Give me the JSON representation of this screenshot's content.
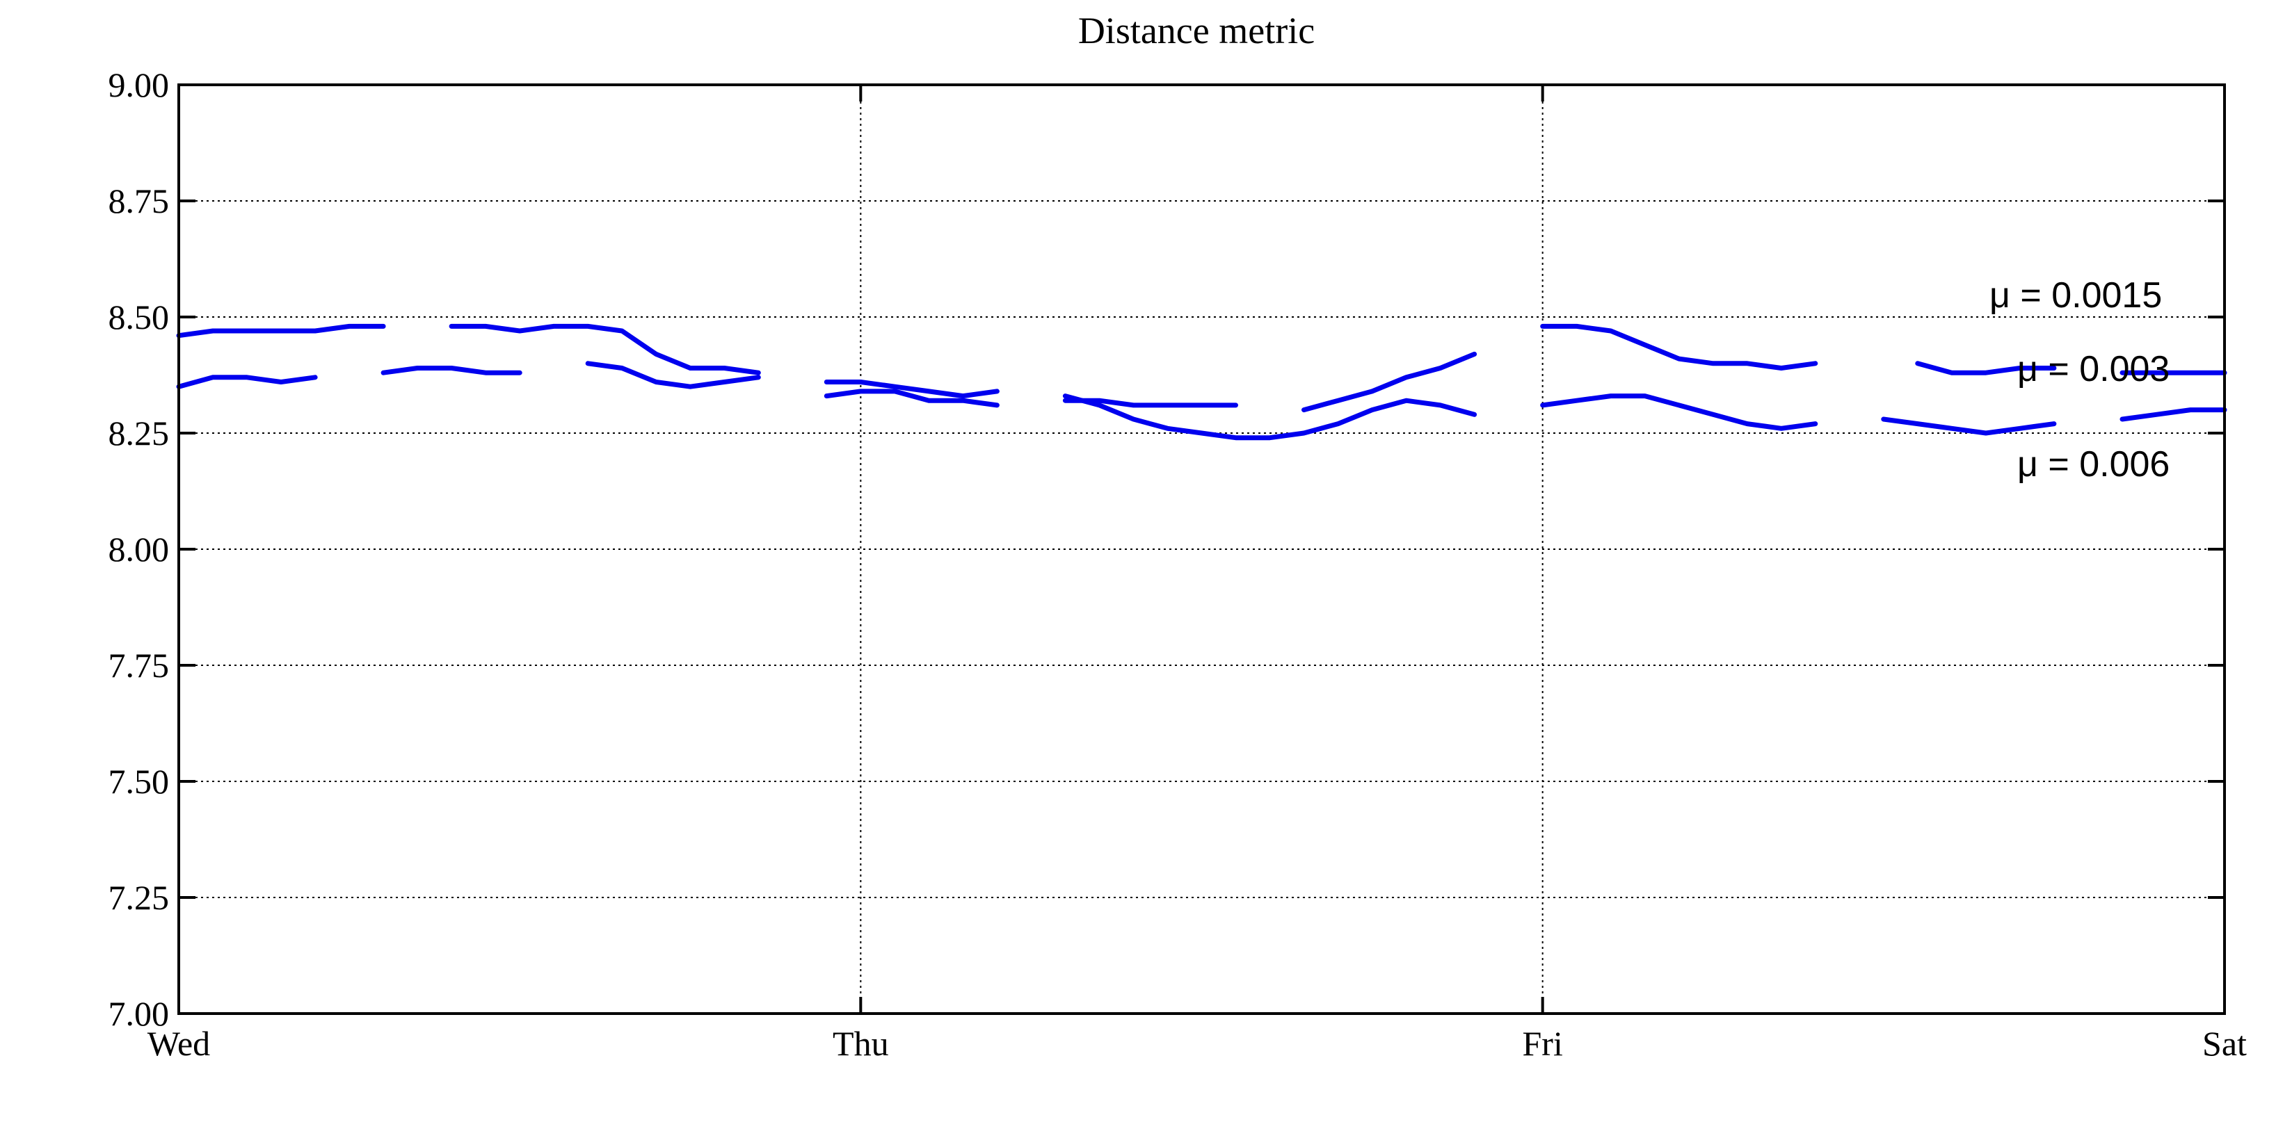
{
  "chart_data": {
    "type": "line",
    "title": "Distance metric",
    "xlabel": "",
    "ylabel": "",
    "x_ticks": [
      "Wed",
      "Thu",
      "Fri",
      "Sat"
    ],
    "xlim": [
      0,
      3
    ],
    "ylim": [
      7.0,
      9.0
    ],
    "y_ticks": [
      "7.00",
      "7.25",
      "7.50",
      "7.75",
      "8.00",
      "8.25",
      "8.50",
      "8.75",
      "9.00"
    ],
    "grid": true,
    "line_color": "#0000ee",
    "series": [
      {
        "name": "μ = 0.0015",
        "gaps": [
          [
            0.3,
            0.39
          ],
          [
            0.65,
            0.7
          ],
          [
            0.88,
            0.92
          ],
          [
            1.23,
            1.3
          ],
          [
            1.58,
            1.63
          ],
          [
            1.92,
            2.0
          ],
          [
            2.42,
            2.51
          ],
          [
            2.77,
            2.84
          ],
          [
            2.97,
            3.0
          ]
        ],
        "x": [
          0.0,
          0.05,
          0.1,
          0.15,
          0.2,
          0.25,
          0.3,
          0.35,
          0.4,
          0.45,
          0.5,
          0.55,
          0.6,
          0.65,
          0.7,
          0.75,
          0.8,
          0.85,
          0.9,
          0.95,
          1.0,
          1.05,
          1.1,
          1.15,
          1.2,
          1.25,
          1.3,
          1.35,
          1.4,
          1.45,
          1.5,
          1.55,
          1.6,
          1.65,
          1.7,
          1.75,
          1.8,
          1.85,
          1.9,
          1.95,
          2.0,
          2.05,
          2.1,
          2.15,
          2.2,
          2.25,
          2.3,
          2.35,
          2.4,
          2.45,
          2.5,
          2.55,
          2.6,
          2.65,
          2.7,
          2.75,
          2.8,
          2.85,
          2.9,
          2.95,
          3.0
        ],
        "values": [
          8.46,
          8.47,
          8.47,
          8.47,
          8.47,
          8.48,
          8.48,
          8.48,
          8.48,
          8.48,
          8.47,
          8.48,
          8.48,
          8.47,
          8.42,
          8.39,
          8.39,
          8.38,
          8.35,
          8.33,
          8.34,
          8.34,
          8.32,
          8.32,
          8.31,
          8.32,
          8.32,
          8.32,
          8.31,
          8.31,
          8.31,
          8.31,
          8.31,
          8.3,
          8.32,
          8.34,
          8.37,
          8.39,
          8.42,
          8.45,
          8.48,
          8.48,
          8.47,
          8.44,
          8.41,
          8.4,
          8.4,
          8.39,
          8.4,
          8.41,
          8.41,
          8.4,
          8.38,
          8.38,
          8.39,
          8.39,
          8.38,
          8.38,
          8.38,
          8.38,
          8.38
        ]
      },
      {
        "name": "μ = 0.003",
        "gaps": [
          [
            0.2,
            0.27
          ],
          [
            0.52,
            0.57
          ],
          [
            0.88,
            0.92
          ],
          [
            1.23,
            1.3
          ],
          [
            1.55,
            1.6
          ],
          [
            1.92,
            2.0
          ],
          [
            2.4,
            2.47
          ],
          [
            2.76,
            2.82
          ]
        ],
        "x": [
          0.0,
          0.05,
          0.1,
          0.15,
          0.2,
          0.25,
          0.3,
          0.35,
          0.4,
          0.45,
          0.5,
          0.55,
          0.6,
          0.65,
          0.7,
          0.75,
          0.8,
          0.85,
          0.9,
          0.95,
          1.0,
          1.05,
          1.1,
          1.15,
          1.2,
          1.25,
          1.3,
          1.35,
          1.4,
          1.45,
          1.5,
          1.55,
          1.6,
          1.65,
          1.7,
          1.75,
          1.8,
          1.85,
          1.9,
          1.95,
          2.0,
          2.05,
          2.1,
          2.15,
          2.2,
          2.25,
          2.3,
          2.35,
          2.4,
          2.45,
          2.5,
          2.55,
          2.6,
          2.65,
          2.7,
          2.75,
          2.8,
          2.85,
          2.9,
          2.95,
          3.0
        ],
        "values": [
          8.35,
          8.37,
          8.37,
          8.36,
          8.37,
          8.38,
          8.38,
          8.39,
          8.39,
          8.38,
          8.38,
          8.39,
          8.4,
          8.39,
          8.36,
          8.35,
          8.36,
          8.37,
          8.37,
          8.36,
          8.36,
          8.35,
          8.34,
          8.33,
          8.34,
          8.35,
          8.33,
          8.31,
          8.28,
          8.26,
          8.25,
          8.24,
          8.24,
          8.25,
          8.27,
          8.3,
          8.32,
          8.31,
          8.29,
          8.3,
          8.31,
          8.32,
          8.33,
          8.33,
          8.31,
          8.29,
          8.27,
          8.26,
          8.27,
          8.28,
          8.28,
          8.27,
          8.26,
          8.25,
          8.26,
          8.27,
          8.27,
          8.28,
          8.29,
          8.3,
          8.3
        ]
      },
      {
        "name": "μ = 0.006",
        "gaps": [],
        "x": [],
        "values": []
      }
    ]
  }
}
